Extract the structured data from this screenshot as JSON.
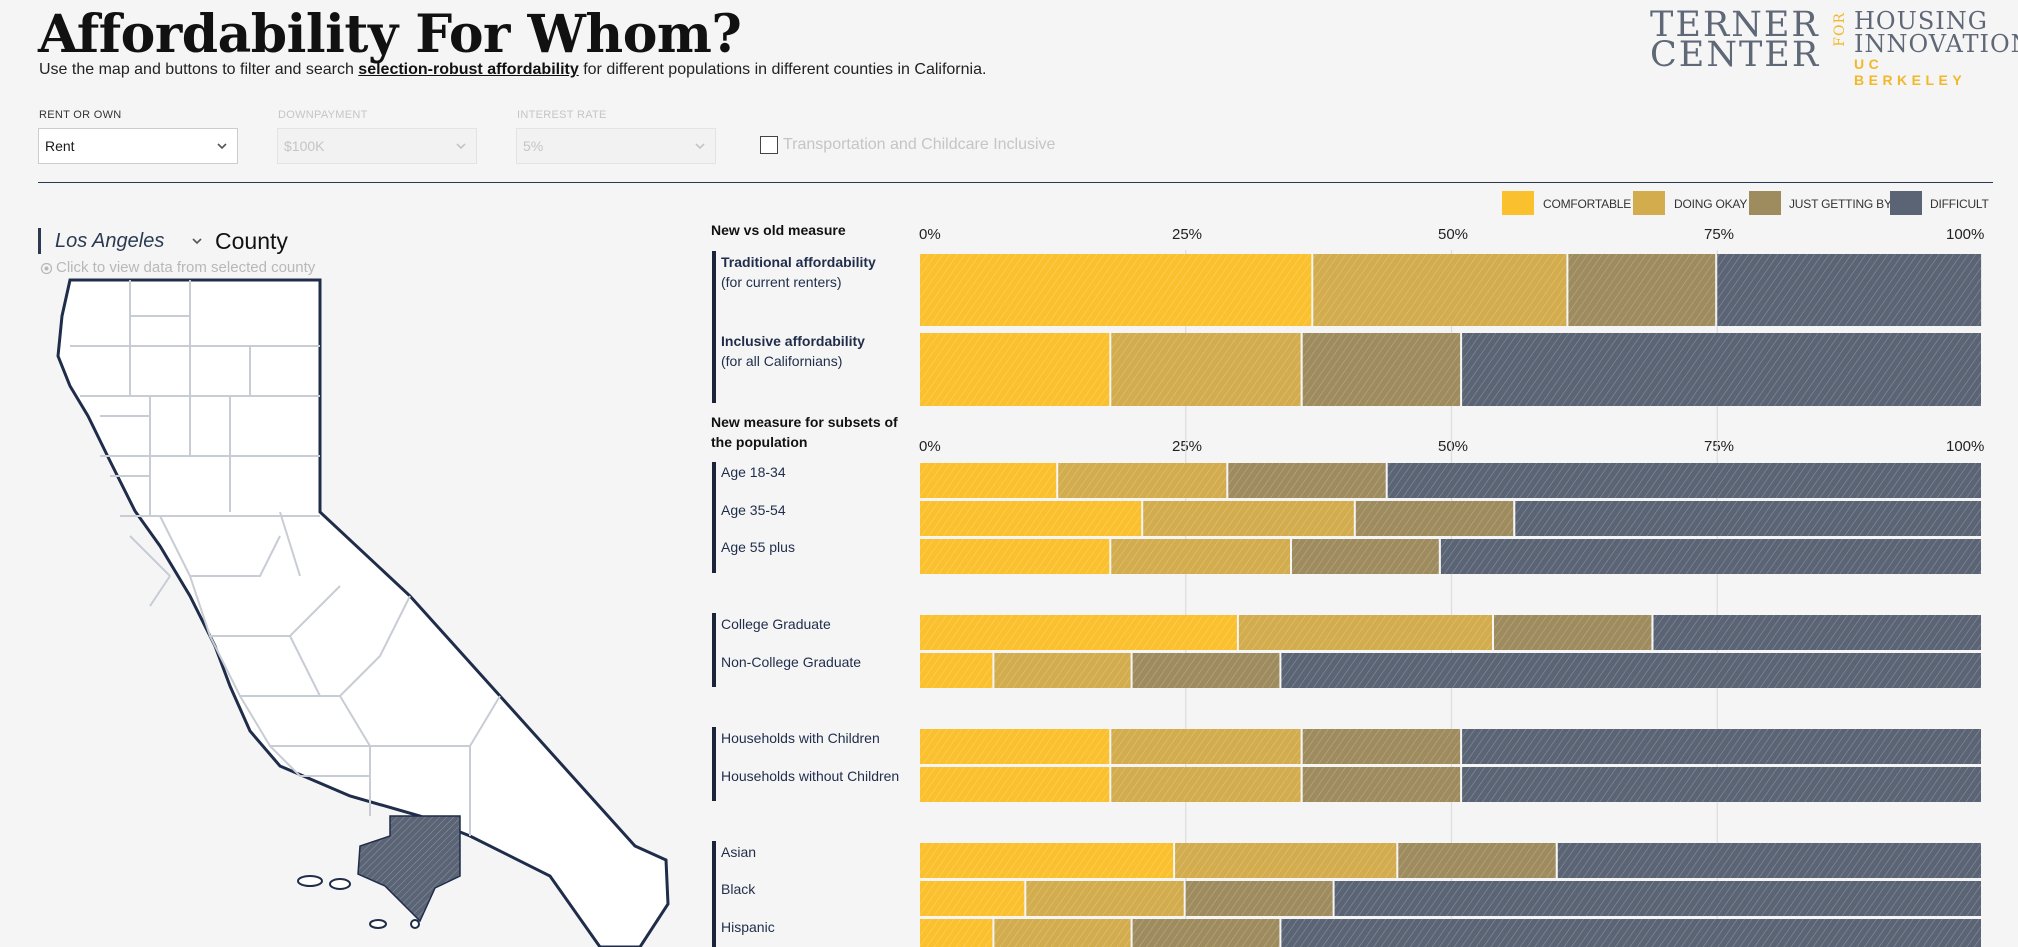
{
  "header": {
    "title": "Affordability For Whom?",
    "subtitle_pre": "Use the map and buttons to filter and search ",
    "subtitle_link": "selection-robust affordability",
    "subtitle_post": " for different populations in different counties in California."
  },
  "logo": {
    "line1": "TERNER",
    "line2": "CENTER",
    "for": "FOR",
    "right1": "HOUSING",
    "right2": "INNOVATION",
    "right3": "UC BERKELEY"
  },
  "controls": {
    "rent_or_own": {
      "label": "RENT OR OWN",
      "value": "Rent"
    },
    "downpayment": {
      "label": "DOWNPAYMENT",
      "value": "$100K"
    },
    "interest_rate": {
      "label": "INTEREST RATE",
      "value": "5%"
    },
    "inclusive_checkbox": {
      "label": "Transportation and Childcare Inclusive",
      "checked": false
    }
  },
  "legend": [
    {
      "label": "COMFORTABLE",
      "color": "#fbc02d"
    },
    {
      "label": "DOING OKAY",
      "color": "#d2ac4d"
    },
    {
      "label": "JUST GETTING BY",
      "color": "#9e8b5e"
    },
    {
      "label": "DIFFICULT",
      "color": "#5a6474"
    }
  ],
  "county": {
    "selected": "Los Angeles",
    "suffix": "County",
    "hint": "Click to view data from selected county"
  },
  "chart_data": {
    "type": "bar",
    "orientation": "horizontal-stacked-100",
    "x_ticks": [
      "0%",
      "25%",
      "50%",
      "75%",
      "100%"
    ],
    "categories_order": [
      "Comfortable",
      "Doing Okay",
      "Just Getting By",
      "Difficult"
    ],
    "sections": [
      {
        "title": "New vs old measure",
        "groups": [
          {
            "rows": [
              {
                "label": "Traditional affordability",
                "sub": "(for current renters)",
                "values": [
                  37,
                  24,
                  14,
                  25
                ]
              },
              {
                "label": "Inclusive affordability",
                "sub": "(for all Californians)",
                "values": [
                  18,
                  18,
                  15,
                  49
                ]
              }
            ]
          }
        ]
      },
      {
        "title": "New measure for subsets of the population",
        "groups": [
          {
            "rows": [
              {
                "label": "Age 18-34",
                "values": [
                  13,
                  16,
                  15,
                  56
                ]
              },
              {
                "label": "Age 35-54",
                "values": [
                  21,
                  20,
                  15,
                  44
                ]
              },
              {
                "label": "Age 55 plus",
                "values": [
                  18,
                  17,
                  14,
                  51
                ]
              }
            ]
          },
          {
            "rows": [
              {
                "label": "College Graduate",
                "values": [
                  30,
                  24,
                  15,
                  31
                ]
              },
              {
                "label": "Non-College Graduate",
                "values": [
                  7,
                  13,
                  14,
                  66
                ]
              }
            ]
          },
          {
            "rows": [
              {
                "label": "Households with Children",
                "values": [
                  18,
                  18,
                  15,
                  49
                ]
              },
              {
                "label": "Households without Children",
                "values": [
                  18,
                  18,
                  15,
                  49
                ]
              }
            ]
          },
          {
            "rows": [
              {
                "label": "Asian",
                "values": [
                  24,
                  21,
                  15,
                  40
                ]
              },
              {
                "label": "Black",
                "values": [
                  10,
                  15,
                  14,
                  61
                ]
              },
              {
                "label": "Hispanic",
                "values": [
                  7,
                  13,
                  14,
                  66
                ]
              }
            ]
          }
        ]
      }
    ]
  }
}
